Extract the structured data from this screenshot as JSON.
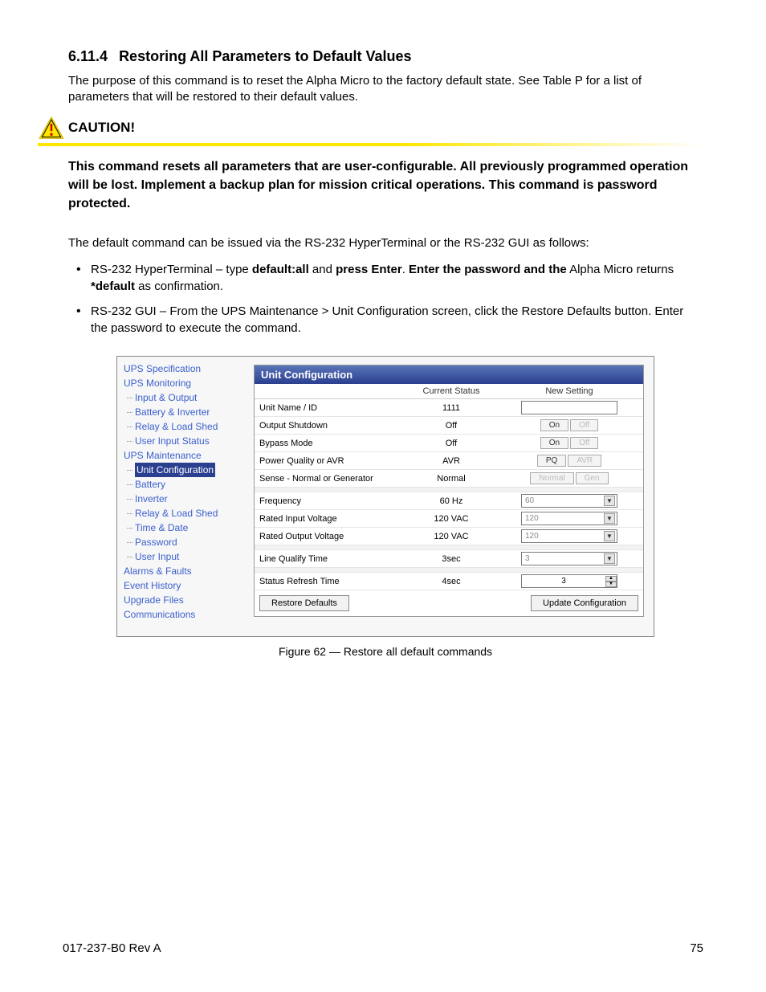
{
  "heading": {
    "number": "6.11.4",
    "title": "Restoring All Parameters to Default Values"
  },
  "intro": "The purpose of this command is to reset the Alpha Micro to the factory default state. See Table P for a list of parameters that will be restored to their default values.",
  "caution": {
    "label": "CAUTION!",
    "body": "This command resets all parameters that are user-configurable. All previously programmed operation will be lost. Implement a backup plan for mission critical operations. This command is password protected."
  },
  "lead": "The default command can be issued via the RS-232 HyperTerminal or the RS-232 GUI as follows:",
  "bullets": {
    "b1_a": "RS-232 HyperTerminal – type ",
    "b1_b": "default:all",
    "b1_c": " and ",
    "b1_d": "press Enter",
    "b1_e": ". ",
    "b1_f": "Enter the password and the",
    "b1_g": " Alpha Micro returns ",
    "b1_h": "*default",
    "b1_i": " as confirmation.",
    "b2": "RS-232 GUI – From the UPS Maintenance > Unit Configuration screen, click the Restore Defaults button. Enter the password to execute the command."
  },
  "gui": {
    "tree": {
      "spec": "UPS Specification",
      "mon": "UPS Monitoring",
      "mon_items": [
        "Input & Output",
        "Battery & Inverter",
        "Relay & Load Shed",
        "User Input Status"
      ],
      "maint": "UPS Maintenance",
      "maint_items": [
        "Unit Configuration",
        "Battery",
        "Inverter",
        "Relay & Load Shed",
        "Time & Date",
        "Password",
        "User Input"
      ],
      "other": [
        "Alarms & Faults",
        "Event History",
        "Upgrade Files",
        "Communications"
      ],
      "selected": "Unit Configuration"
    },
    "panel": {
      "title": "Unit Configuration",
      "headers": {
        "status": "Current Status",
        "new": "New Setting"
      },
      "rows": [
        {
          "label": "Unit Name / ID",
          "status": "1111",
          "type": "blank"
        },
        {
          "label": "Output Shutdown",
          "status": "Off",
          "type": "toggle",
          "on": "On",
          "off": "Off"
        },
        {
          "label": "Bypass Mode",
          "status": "Off",
          "type": "toggle",
          "on": "On",
          "off": "Off"
        },
        {
          "label": "Power Quality or AVR",
          "status": "AVR",
          "type": "toggle",
          "on": "PQ",
          "off": "AVR"
        },
        {
          "label": "Sense - Normal or Generator",
          "status": "Normal",
          "type": "toggle-dim",
          "on": "Normal",
          "off": "Gen"
        }
      ],
      "rows2": [
        {
          "label": "Frequency",
          "status": "60 Hz",
          "type": "dd",
          "val": "60"
        },
        {
          "label": "Rated Input Voltage",
          "status": "120 VAC",
          "type": "dd",
          "val": "120"
        },
        {
          "label": "Rated Output Voltage",
          "status": "120 VAC",
          "type": "dd",
          "val": "120"
        }
      ],
      "rows3": [
        {
          "label": "Line Qualify Time",
          "status": "3sec",
          "type": "dd",
          "val": "3"
        }
      ],
      "rows4": [
        {
          "label": "Status Refresh Time",
          "status": "4sec",
          "type": "spin",
          "val": "3"
        }
      ],
      "buttons": {
        "restore": "Restore Defaults",
        "update": "Update Configuration"
      }
    }
  },
  "figure_caption": "Figure 62  —  Restore all default commands",
  "footer": {
    "doc": "017-237-B0     Rev A",
    "page": "75"
  },
  "colors": {
    "caution_yellow": "#ffe600",
    "link_blue": "#3a5fcd",
    "panel_header": "#2a3f8f"
  }
}
